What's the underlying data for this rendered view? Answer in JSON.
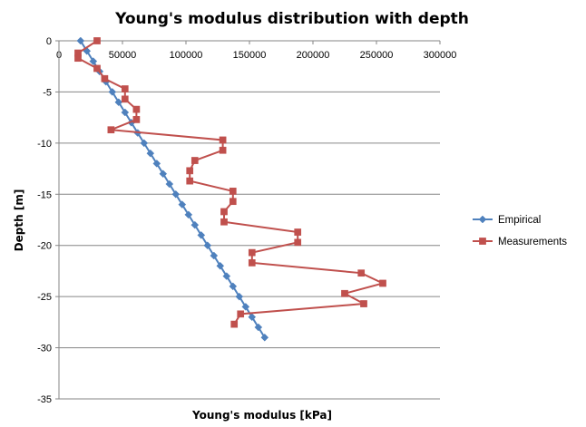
{
  "chart_data": {
    "type": "scatter",
    "title": "Young's modulus distribution with depth",
    "xlabel": "Young's modulus [kPa]",
    "ylabel": "Depth [m]",
    "xlim": [
      0,
      300000
    ],
    "ylim": [
      -35,
      0
    ],
    "x_ticks": [
      "0",
      "50000",
      "100000",
      "150000",
      "200000",
      "250000",
      "300000"
    ],
    "y_ticks": [
      "0",
      "-5",
      "-10",
      "-15",
      "-20",
      "-25",
      "-30",
      "-35"
    ],
    "grid": "horizontal",
    "legend": "right",
    "series": [
      {
        "name": "Empirical",
        "color": "#4F81BD",
        "marker": "diamond",
        "points": [
          [
            17000,
            0
          ],
          [
            22000,
            -1
          ],
          [
            27000,
            -2
          ],
          [
            32000,
            -3
          ],
          [
            37000,
            -4
          ],
          [
            42000,
            -5
          ],
          [
            47000,
            -6
          ],
          [
            52000,
            -7
          ],
          [
            57000,
            -8
          ],
          [
            62000,
            -9
          ],
          [
            67000,
            -10
          ],
          [
            72000,
            -11
          ],
          [
            77000,
            -12
          ],
          [
            82000,
            -13
          ],
          [
            87000,
            -14
          ],
          [
            92000,
            -15
          ],
          [
            97000,
            -16
          ],
          [
            102000,
            -17
          ],
          [
            107000,
            -18
          ],
          [
            112000,
            -19
          ],
          [
            117000,
            -20
          ],
          [
            122000,
            -21
          ],
          [
            127000,
            -22
          ],
          [
            132000,
            -23
          ],
          [
            137000,
            -24
          ],
          [
            142000,
            -25
          ],
          [
            147000,
            -26
          ],
          [
            152000,
            -27
          ],
          [
            157000,
            -28
          ],
          [
            162000,
            -29
          ]
        ]
      },
      {
        "name": "Measurements",
        "color": "#C0504D",
        "marker": "square",
        "points": [
          [
            30000,
            0
          ],
          [
            15000,
            -1.2
          ],
          [
            15000,
            -1.7
          ],
          [
            30000,
            -2.7
          ],
          [
            36000,
            -3.7
          ],
          [
            52000,
            -4.7
          ],
          [
            52000,
            -5.7
          ],
          [
            61000,
            -6.7
          ],
          [
            61000,
            -7.7
          ],
          [
            41000,
            -8.7
          ],
          [
            129000,
            -9.7
          ],
          [
            129000,
            -10.7
          ],
          [
            107000,
            -11.7
          ],
          [
            103000,
            -12.7
          ],
          [
            103000,
            -13.7
          ],
          [
            137000,
            -14.7
          ],
          [
            137000,
            -15.7
          ],
          [
            130000,
            -16.7
          ],
          [
            130000,
            -17.7
          ],
          [
            188000,
            -18.7
          ],
          [
            188000,
            -19.7
          ],
          [
            152000,
            -20.7
          ],
          [
            152000,
            -21.7
          ],
          [
            238000,
            -22.7
          ],
          [
            255000,
            -23.7
          ],
          [
            225000,
            -24.7
          ],
          [
            240000,
            -25.7
          ],
          [
            143000,
            -26.7
          ],
          [
            138000,
            -27.7
          ]
        ]
      }
    ]
  }
}
